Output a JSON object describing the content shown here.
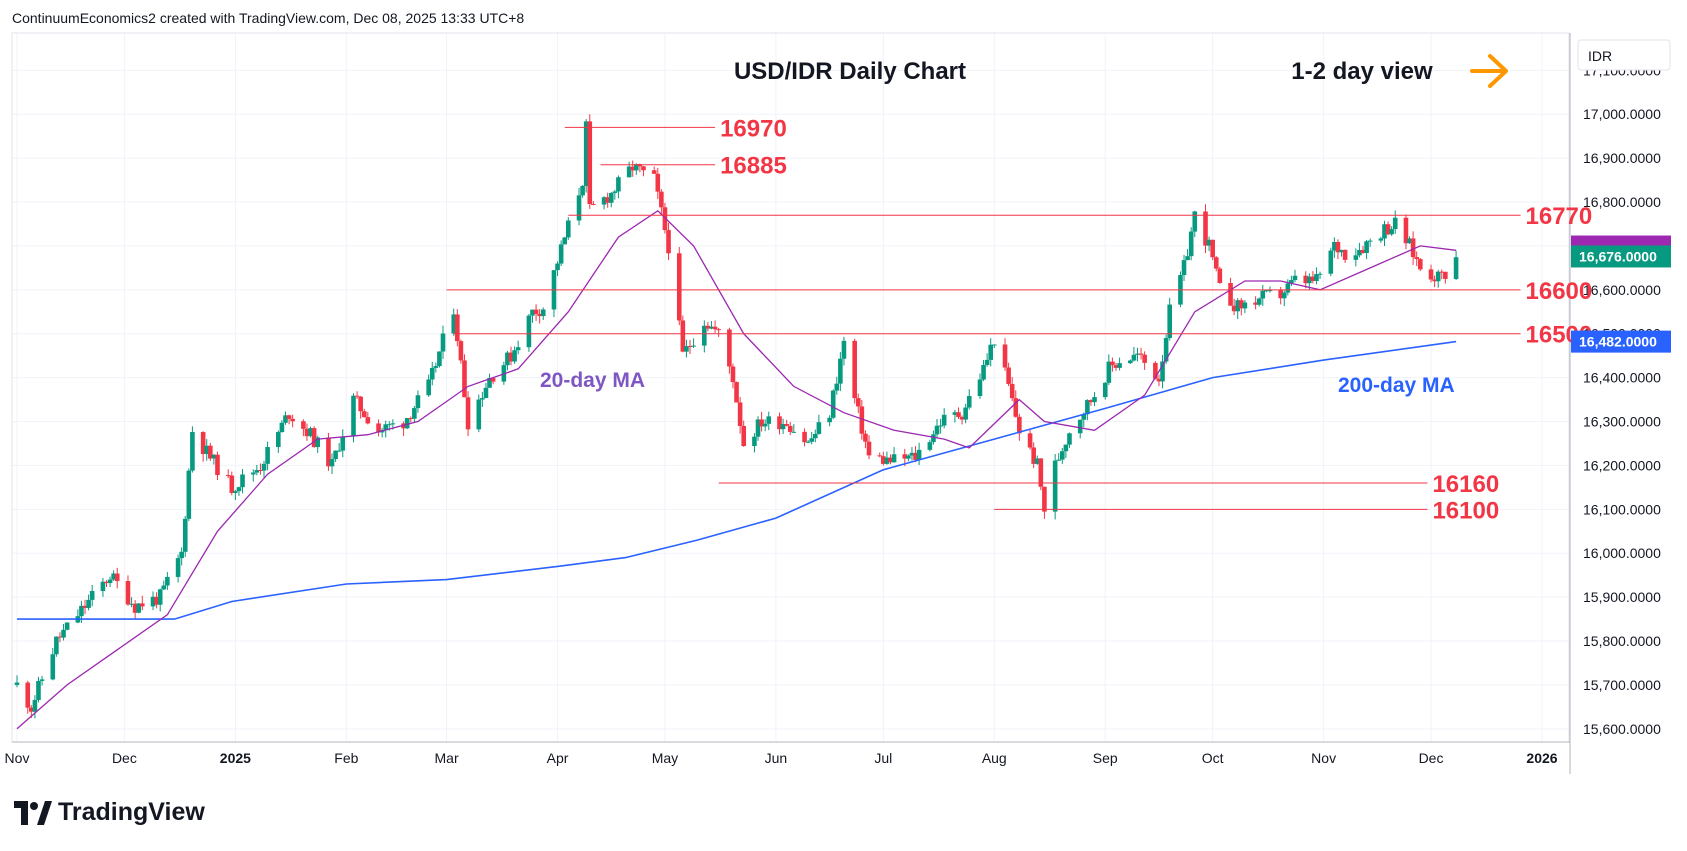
{
  "header": {
    "attribution": "ContinuumEconomics2 created with TradingView.com, Dec 08, 2025 13:33 UTC+8"
  },
  "brand": {
    "name": "TradingView"
  },
  "chart_data": {
    "type": "candlestick",
    "title": "USD/IDR Daily Chart",
    "view_label": "1-2 day view",
    "currency": "IDR",
    "ylim": [
      15570,
      17185
    ],
    "y_ticks": [
      "15,600.0000",
      "15,700.0000",
      "15,800.0000",
      "15,900.0000",
      "16,000.0000",
      "16,100.0000",
      "16,200.0000",
      "16,300.0000",
      "16,400.0000",
      "16,500.0000",
      "16,600.0000",
      "16,700.0000",
      "16,800.0000",
      "16,900.0000",
      "17,000.0000",
      "17,100.0000"
    ],
    "x_ticks": [
      {
        "label": "Nov",
        "date": "2024-11-01",
        "bold": false
      },
      {
        "label": "Dec",
        "date": "2024-12-01",
        "bold": false
      },
      {
        "label": "2025",
        "date": "2025-01-01",
        "bold": true
      },
      {
        "label": "Feb",
        "date": "2025-02-01",
        "bold": false
      },
      {
        "label": "Mar",
        "date": "2025-03-01",
        "bold": false
      },
      {
        "label": "Apr",
        "date": "2025-04-01",
        "bold": false
      },
      {
        "label": "May",
        "date": "2025-05-01",
        "bold": false
      },
      {
        "label": "Jun",
        "date": "2025-06-01",
        "bold": false
      },
      {
        "label": "Jul",
        "date": "2025-07-01",
        "bold": false
      },
      {
        "label": "Aug",
        "date": "2025-08-01",
        "bold": false
      },
      {
        "label": "Sep",
        "date": "2025-09-01",
        "bold": false
      },
      {
        "label": "Oct",
        "date": "2025-10-01",
        "bold": false
      },
      {
        "label": "Nov",
        "date": "2025-11-01",
        "bold": false
      },
      {
        "label": "Dec",
        "date": "2025-12-01",
        "bold": false
      },
      {
        "label": "2026",
        "date": "2026-01-01",
        "bold": true
      }
    ],
    "last_price": {
      "label": "16,676.0000",
      "value": 16676
    },
    "ma200_value": {
      "label": "16,482.0000",
      "value": 16482
    },
    "levels": [
      {
        "label": "16970",
        "value": 16970,
        "from": "2025-04-03",
        "to": "2025-05-15"
      },
      {
        "label": "16885",
        "value": 16885,
        "from": "2025-04-13",
        "to": "2025-05-15"
      },
      {
        "label": "16770",
        "value": 16770,
        "from": "2025-04-04",
        "to": "2025-12-26"
      },
      {
        "label": "16600",
        "value": 16600,
        "from": "2025-03-01",
        "to": "2025-12-26"
      },
      {
        "label": "16500",
        "value": 16500,
        "from": "2025-03-03",
        "to": "2025-12-26"
      },
      {
        "label": "16160",
        "value": 16160,
        "from": "2025-05-16",
        "to": "2025-11-30"
      },
      {
        "label": "16100",
        "value": 16100,
        "from": "2025-08-01",
        "to": "2025-11-30"
      }
    ],
    "ma_labels": {
      "ma20": "20-day MA",
      "ma200": "200-day MA"
    },
    "colors": {
      "up": "#089981",
      "down": "#f23645",
      "ma20": "#9c27b0",
      "ma200": "#2962ff",
      "level": "#f23645",
      "level_text": "#f23645",
      "arrow": "#ff9800",
      "ma20_text": "#7e57c2",
      "ma200_text": "#2962ff"
    },
    "anchors": [
      [
        "2024-11-01",
        15700
      ],
      [
        "2024-11-05",
        15650
      ],
      [
        "2024-11-12",
        15800
      ],
      [
        "2024-11-20",
        15880
      ],
      [
        "2024-11-27",
        15950
      ],
      [
        "2024-12-04",
        15880
      ],
      [
        "2024-12-11",
        15900
      ],
      [
        "2024-12-17",
        16000
      ],
      [
        "2024-12-20",
        16280
      ],
      [
        "2024-12-24",
        16230
      ],
      [
        "2024-12-31",
        16150
      ],
      [
        "2025-01-08",
        16200
      ],
      [
        "2025-01-16",
        16320
      ],
      [
        "2025-01-22",
        16270
      ],
      [
        "2025-01-28",
        16200
      ],
      [
        "2025-02-03",
        16350
      ],
      [
        "2025-02-10",
        16280
      ],
      [
        "2025-02-17",
        16300
      ],
      [
        "2025-02-24",
        16380
      ],
      [
        "2025-03-03",
        16560
      ],
      [
        "2025-03-07",
        16300
      ],
      [
        "2025-03-13",
        16400
      ],
      [
        "2025-03-19",
        16450
      ],
      [
        "2025-03-25",
        16550
      ],
      [
        "2025-03-28",
        16560
      ],
      [
        "2025-04-08",
        16850
      ],
      [
        "2025-04-09",
        16970
      ],
      [
        "2025-04-10",
        16780
      ],
      [
        "2025-04-16",
        16820
      ],
      [
        "2025-04-22",
        16880
      ],
      [
        "2025-04-28",
        16850
      ],
      [
        "2025-05-02",
        16700
      ],
      [
        "2025-05-06",
        16450
      ],
      [
        "2025-05-12",
        16530
      ],
      [
        "2025-05-16",
        16500
      ],
      [
        "2025-05-20",
        16400
      ],
      [
        "2025-05-23",
        16250
      ],
      [
        "2025-05-28",
        16300
      ],
      [
        "2025-06-04",
        16300
      ],
      [
        "2025-06-10",
        16250
      ],
      [
        "2025-06-16",
        16320
      ],
      [
        "2025-06-20",
        16480
      ],
      [
        "2025-06-23",
        16350
      ],
      [
        "2025-06-27",
        16220
      ],
      [
        "2025-07-03",
        16210
      ],
      [
        "2025-07-10",
        16220
      ],
      [
        "2025-07-17",
        16300
      ],
      [
        "2025-07-23",
        16320
      ],
      [
        "2025-07-29",
        16420
      ],
      [
        "2025-08-01",
        16490
      ],
      [
        "2025-08-05",
        16380
      ],
      [
        "2025-08-08",
        16280
      ],
      [
        "2025-08-13",
        16200
      ],
      [
        "2025-08-15",
        16100
      ],
      [
        "2025-08-18",
        16200
      ],
      [
        "2025-08-22",
        16280
      ],
      [
        "2025-08-28",
        16350
      ],
      [
        "2025-09-02",
        16420
      ],
      [
        "2025-09-05",
        16440
      ],
      [
        "2025-09-10",
        16450
      ],
      [
        "2025-09-16",
        16400
      ],
      [
        "2025-09-19",
        16550
      ],
      [
        "2025-09-23",
        16650
      ],
      [
        "2025-09-26",
        16770
      ],
      [
        "2025-09-30",
        16700
      ],
      [
        "2025-10-03",
        16600
      ],
      [
        "2025-10-08",
        16560
      ],
      [
        "2025-10-14",
        16580
      ],
      [
        "2025-10-20",
        16590
      ],
      [
        "2025-10-24",
        16620
      ],
      [
        "2025-10-30",
        16620
      ],
      [
        "2025-11-04",
        16700
      ],
      [
        "2025-11-08",
        16680
      ],
      [
        "2025-11-12",
        16700
      ],
      [
        "2025-11-18",
        16740
      ],
      [
        "2025-11-21",
        16750
      ],
      [
        "2025-11-25",
        16700
      ],
      [
        "2025-11-28",
        16650
      ],
      [
        "2025-12-03",
        16630
      ],
      [
        "2025-12-05",
        16640
      ],
      [
        "2025-12-08",
        16676
      ]
    ],
    "ma20_points": [
      [
        "2024-11-01",
        15600
      ],
      [
        "2024-11-15",
        15700
      ],
      [
        "2024-11-29",
        15780
      ],
      [
        "2024-12-13",
        15860
      ],
      [
        "2024-12-27",
        16050
      ],
      [
        "2025-01-10",
        16180
      ],
      [
        "2025-01-24",
        16260
      ],
      [
        "2025-02-07",
        16270
      ],
      [
        "2025-02-21",
        16300
      ],
      [
        "2025-03-07",
        16380
      ],
      [
        "2025-03-21",
        16420
      ],
      [
        "2025-04-04",
        16550
      ],
      [
        "2025-04-18",
        16720
      ],
      [
        "2025-04-29",
        16780
      ],
      [
        "2025-05-09",
        16700
      ],
      [
        "2025-05-23",
        16500
      ],
      [
        "2025-06-06",
        16380
      ],
      [
        "2025-06-20",
        16320
      ],
      [
        "2025-07-04",
        16280
      ],
      [
        "2025-07-18",
        16260
      ],
      [
        "2025-07-25",
        16240
      ],
      [
        "2025-08-08",
        16350
      ],
      [
        "2025-08-15",
        16300
      ],
      [
        "2025-08-29",
        16280
      ],
      [
        "2025-09-12",
        16360
      ],
      [
        "2025-09-26",
        16550
      ],
      [
        "2025-10-10",
        16620
      ],
      [
        "2025-10-20",
        16620
      ],
      [
        "2025-10-31",
        16600
      ],
      [
        "2025-11-14",
        16650
      ],
      [
        "2025-11-28",
        16700
      ],
      [
        "2025-12-08",
        16690
      ]
    ],
    "ma200_points": [
      [
        "2024-11-01",
        15850
      ],
      [
        "2024-12-15",
        15850
      ],
      [
        "2024-12-31",
        15890
      ],
      [
        "2025-02-01",
        15930
      ],
      [
        "2025-03-01",
        15940
      ],
      [
        "2025-04-01",
        15970
      ],
      [
        "2025-04-20",
        15990
      ],
      [
        "2025-05-10",
        16030
      ],
      [
        "2025-06-01",
        16080
      ],
      [
        "2025-07-01",
        16190
      ],
      [
        "2025-08-01",
        16260
      ],
      [
        "2025-09-01",
        16330
      ],
      [
        "2025-10-01",
        16400
      ],
      [
        "2025-11-01",
        16440
      ],
      [
        "2025-12-08",
        16482
      ]
    ]
  }
}
